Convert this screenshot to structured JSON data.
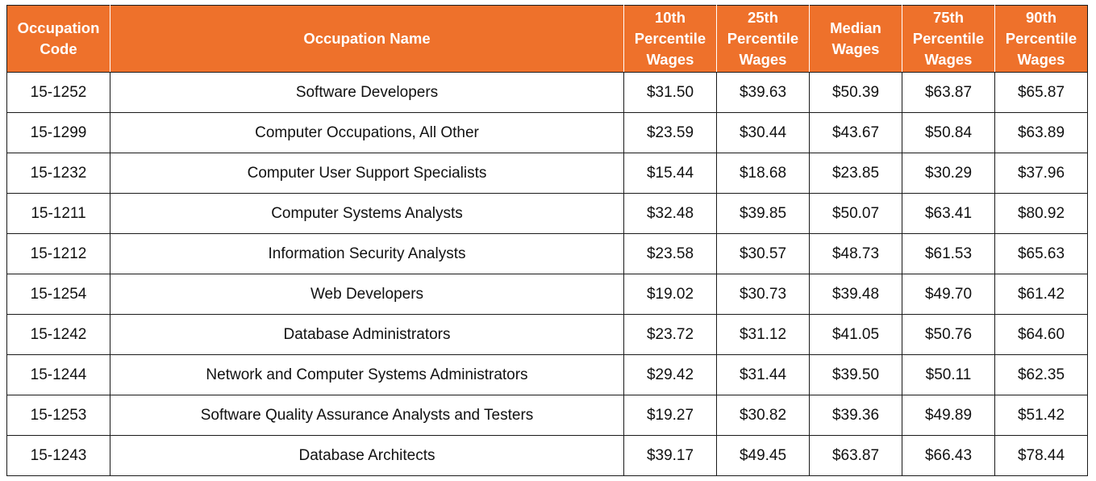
{
  "chart_data": {
    "type": "table",
    "columns": [
      "Occupation Code",
      "Occupation Name",
      "10th Percentile Wages",
      "25th Percentile Wages",
      "Median Wages",
      "75th Percentile Wages",
      "90th Percentile Wages"
    ],
    "rows": [
      [
        "15-1252",
        "Software Developers",
        "$31.50",
        "$39.63",
        "$50.39",
        "$63.87",
        "$65.87"
      ],
      [
        "15-1299",
        "Computer Occupations, All Other",
        "$23.59",
        "$30.44",
        "$43.67",
        "$50.84",
        "$63.89"
      ],
      [
        "15-1232",
        "Computer User Support Specialists",
        "$15.44",
        "$18.68",
        "$23.85",
        "$30.29",
        "$37.96"
      ],
      [
        "15-1211",
        "Computer Systems Analysts",
        "$32.48",
        "$39.85",
        "$50.07",
        "$63.41",
        "$80.92"
      ],
      [
        "15-1212",
        "Information Security Analysts",
        "$23.58",
        "$30.57",
        "$48.73",
        "$61.53",
        "$65.63"
      ],
      [
        "15-1254",
        "Web Developers",
        "$19.02",
        "$30.73",
        "$39.48",
        "$49.70",
        "$61.42"
      ],
      [
        "15-1242",
        "Database Administrators",
        "$23.72",
        "$31.12",
        "$41.05",
        "$50.76",
        "$64.60"
      ],
      [
        "15-1244",
        "Network and Computer Systems Administrators",
        "$29.42",
        "$31.44",
        "$39.50",
        "$50.11",
        "$62.35"
      ],
      [
        "15-1253",
        "Software Quality Assurance Analysts and Testers",
        "$19.27",
        "$30.82",
        "$39.36",
        "$49.89",
        "$51.42"
      ],
      [
        "15-1243",
        "Database Architects",
        "$39.17",
        "$49.45",
        "$63.87",
        "$66.43",
        "$78.44"
      ]
    ]
  },
  "colors": {
    "header_background": "#ee712b",
    "header_text": "#ffffff",
    "grid_lines": "#1a1a1a"
  }
}
